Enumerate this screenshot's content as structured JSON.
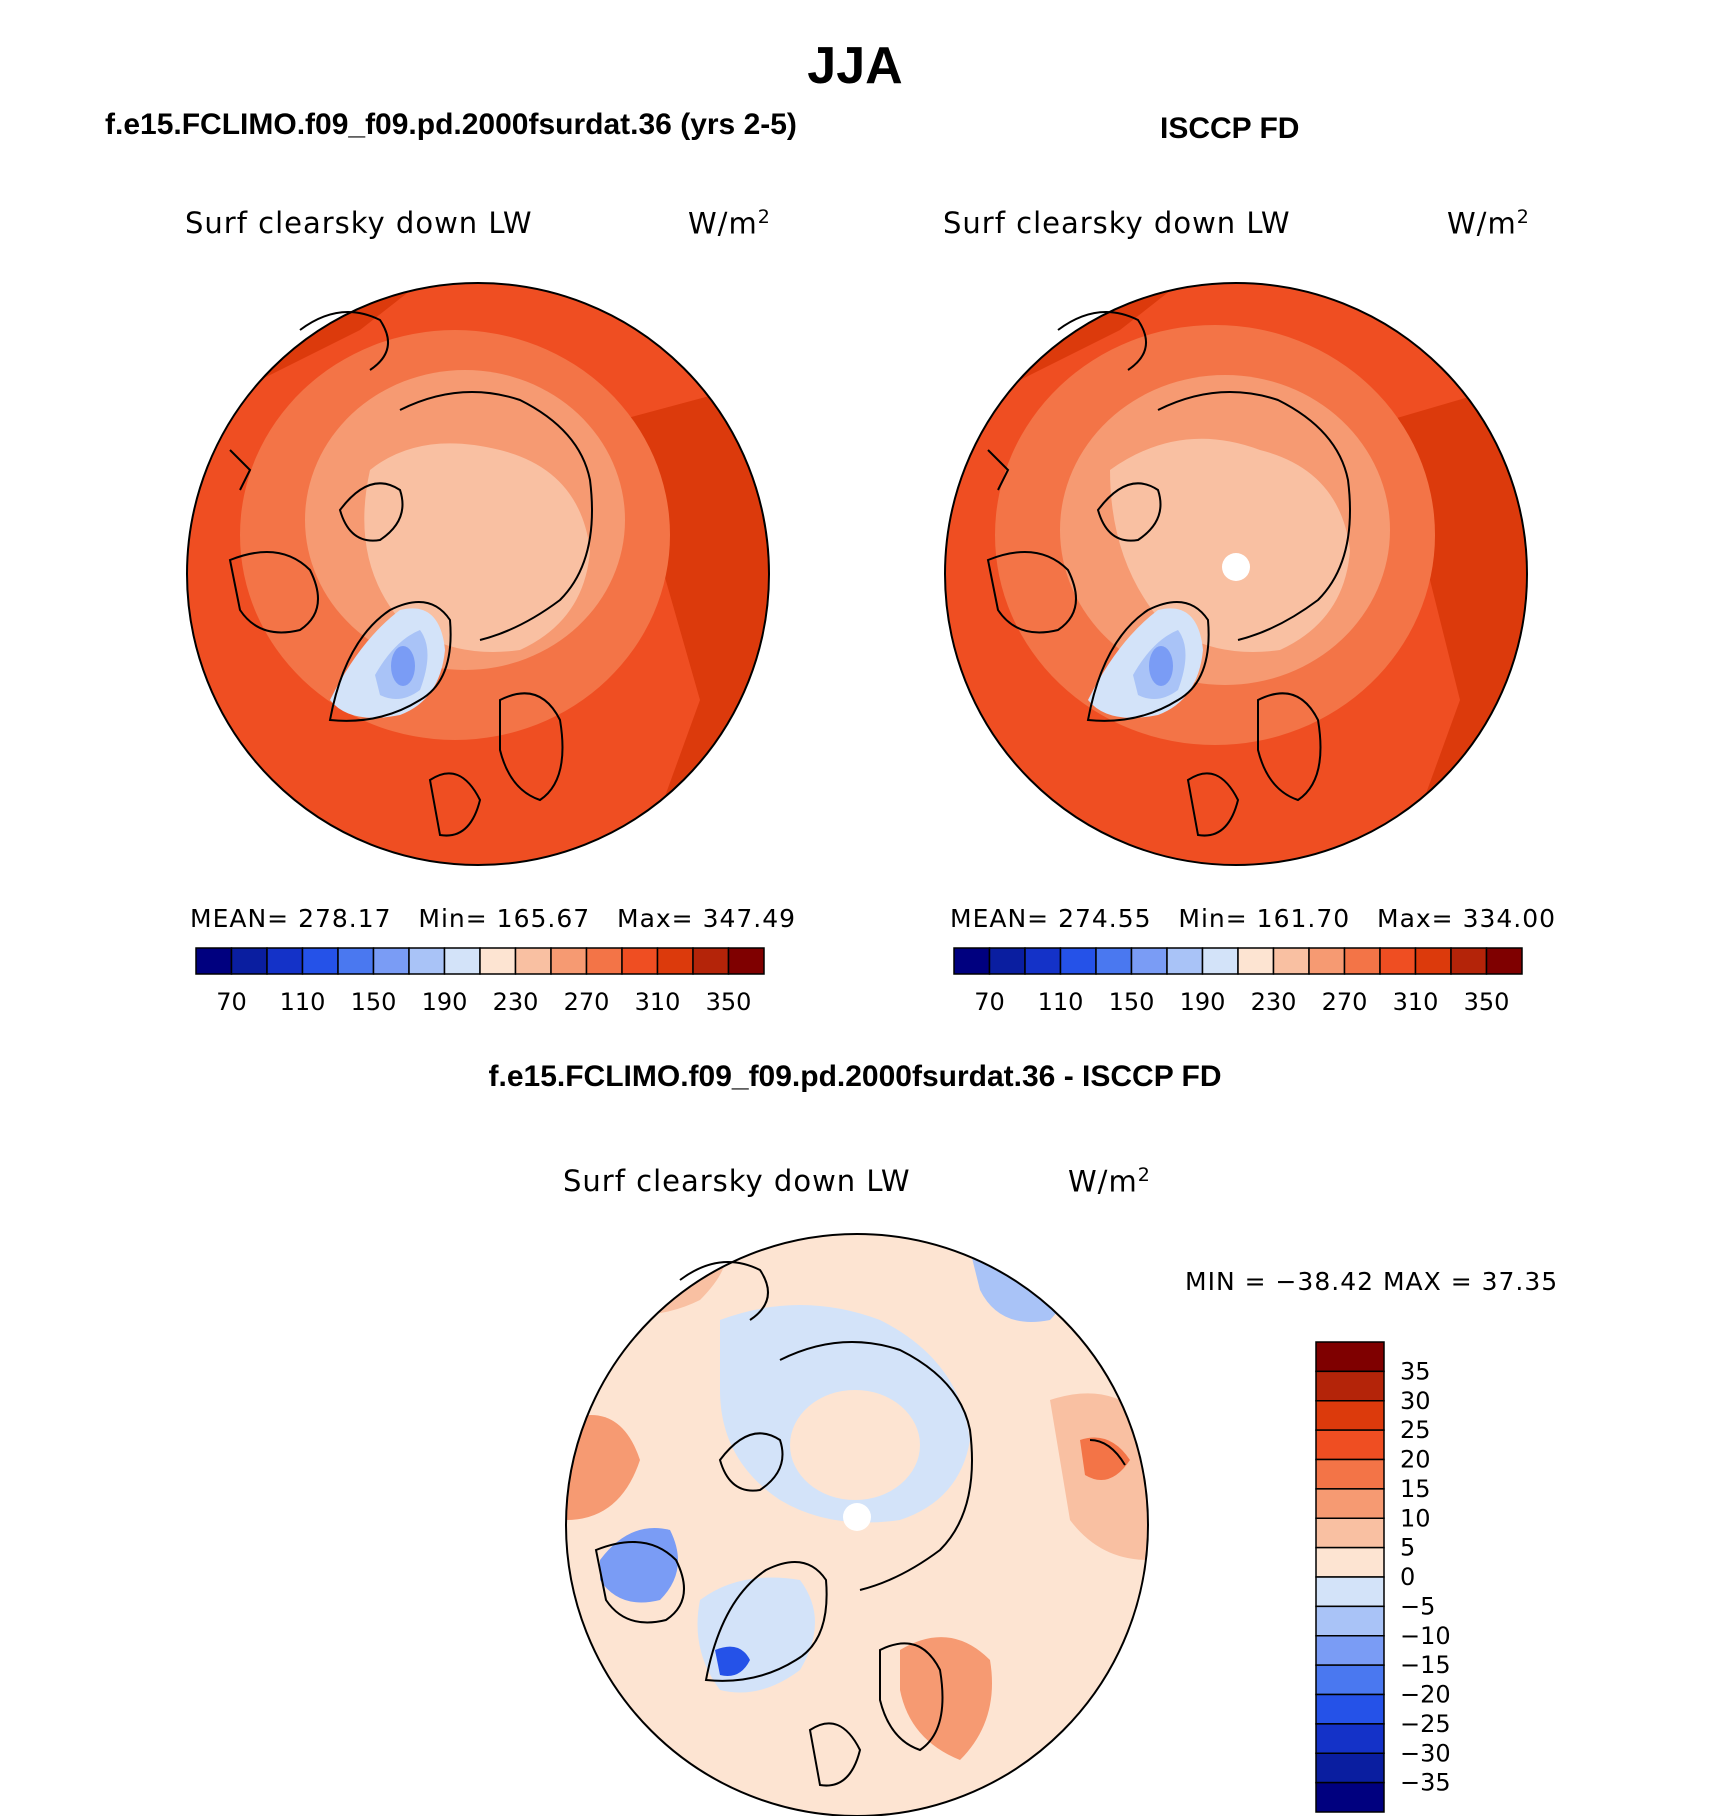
{
  "title": "JJA",
  "panels": {
    "left": {
      "case": "f.e15.FCLIMO.f09_f09.pd.2000fsurdat.36 (yrs 2-5)",
      "variable": "Surf clearsky down LW",
      "units_base": "W/m",
      "units_exp": "2",
      "mean_label": "MEAN=",
      "mean": "278.17",
      "min_label": "Min=",
      "min": "165.67",
      "max_label": "Max=",
      "max": "347.49"
    },
    "right": {
      "case": "ISCCP FD",
      "variable": "Surf clearsky down LW",
      "units_base": "W/m",
      "units_exp": "2",
      "mean_label": "MEAN=",
      "mean": "274.55",
      "min_label": "Min=",
      "min": "161.70",
      "max_label": "Max=",
      "max": "334.00"
    },
    "diff": {
      "case": "f.e15.FCLIMO.f09_f09.pd.2000fsurdat.36 - ISCCP FD",
      "variable": "Surf clearsky down LW",
      "units_base": "W/m",
      "units_exp": "2",
      "minmax_text": "MIN = −38.42 MAX =  37.35"
    }
  },
  "chart_data": [
    {
      "type": "heatmap",
      "projection": "north polar stereographic",
      "title": "Surf clearsky down LW",
      "subtitle": "f.e15.FCLIMO.f09_f09.pd.2000fsurdat.36 (yrs 2-5)",
      "units": "W/m2",
      "stats": {
        "mean": 278.17,
        "min": 165.67,
        "max": 347.49
      },
      "colorbar_ticks": [
        "70",
        "110",
        "150",
        "190",
        "230",
        "270",
        "310",
        "350"
      ],
      "colors": [
        "#00007f",
        "#0a1ea0",
        "#1432c8",
        "#2552e8",
        "#4a78f0",
        "#7a9cf5",
        "#a9c3f7",
        "#d3e3f9",
        "#fde4d2",
        "#f9c0a2",
        "#f69a72",
        "#f37447",
        "#ef4e22",
        "#dc3a0c",
        "#b42409",
        "#7f0000"
      ]
    },
    {
      "type": "heatmap",
      "projection": "north polar stereographic",
      "title": "Surf clearsky down LW",
      "subtitle": "ISCCP FD",
      "units": "W/m2",
      "stats": {
        "mean": 274.55,
        "min": 161.7,
        "max": 334.0
      },
      "colorbar_ticks": [
        "70",
        "110",
        "150",
        "190",
        "230",
        "270",
        "310",
        "350"
      ],
      "colors": [
        "#00007f",
        "#0a1ea0",
        "#1432c8",
        "#2552e8",
        "#4a78f0",
        "#7a9cf5",
        "#a9c3f7",
        "#d3e3f9",
        "#fde4d2",
        "#f9c0a2",
        "#f69a72",
        "#f37447",
        "#ef4e22",
        "#dc3a0c",
        "#b42409",
        "#7f0000"
      ]
    },
    {
      "type": "heatmap",
      "projection": "north polar stereographic",
      "title": "Surf clearsky down LW",
      "subtitle": "f.e15.FCLIMO.f09_f09.pd.2000fsurdat.36 - ISCCP FD",
      "units": "W/m2",
      "stats": {
        "min": -38.42,
        "max": 37.35
      },
      "colorbar_ticks": [
        "35",
        "30",
        "25",
        "20",
        "15",
        "10",
        "5",
        "0",
        "−5",
        "−10",
        "−15",
        "−20",
        "−25",
        "−30",
        "−35"
      ],
      "colors": [
        "#7f0000",
        "#b42409",
        "#dc3a0c",
        "#ef4e22",
        "#f37447",
        "#f69a72",
        "#f9c0a2",
        "#fde4d2",
        "#d3e3f9",
        "#a9c3f7",
        "#7a9cf5",
        "#4a78f0",
        "#2552e8",
        "#1432c8",
        "#0a1ea0",
        "#00007f"
      ]
    }
  ]
}
